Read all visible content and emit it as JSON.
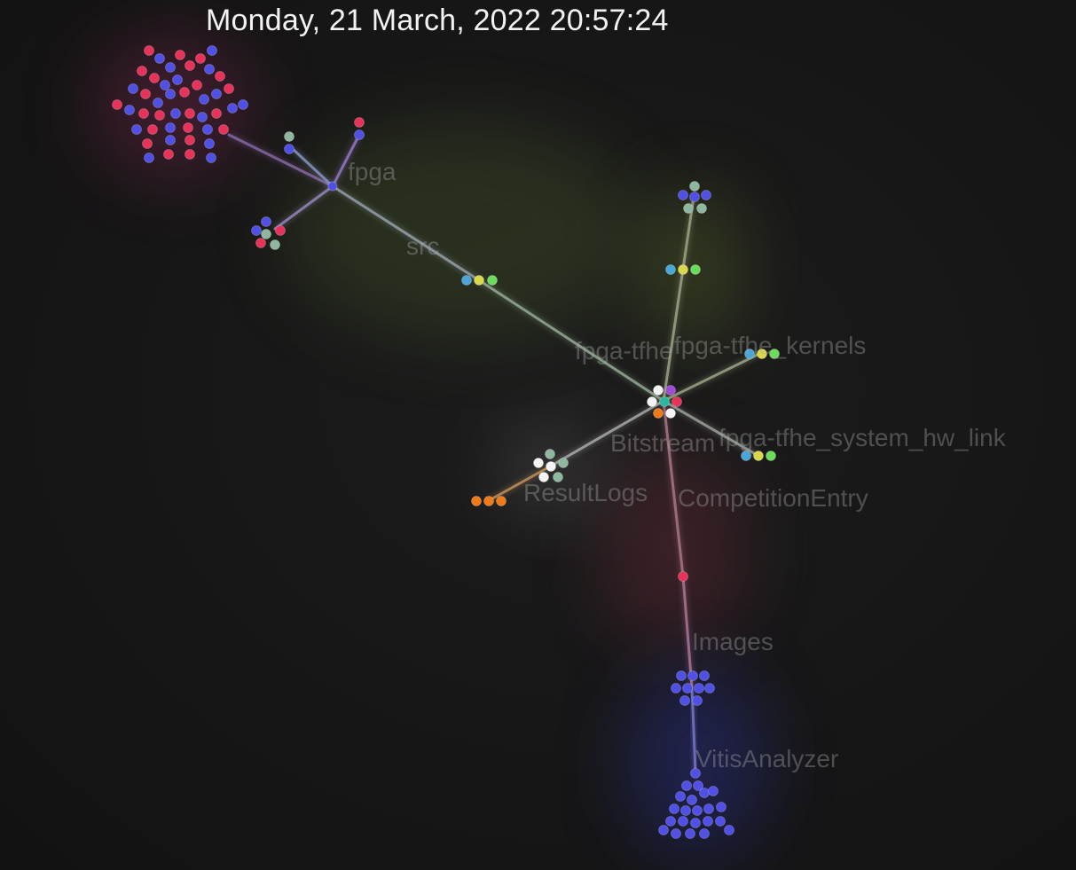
{
  "timestamp": "Monday, 21 March, 2022 20:57:24",
  "labels": [
    "fpga",
    "src",
    "fpga-tfhe",
    "fpga-tfhe_kernels",
    "Bitstream",
    "fpga-tfhe_system_hw_link",
    "ResultLogs",
    "CompetitionEntry",
    "Images",
    "VitisAnalyzer"
  ],
  "colors": {
    "background": "#161616",
    "file_red": "#e8325a",
    "file_blue": "#5050e6",
    "file_gray_green": "#8fb7a0",
    "file_yellow": "#d8d84a",
    "file_green": "#6adc5a",
    "file_cyan": "#4aa6d8",
    "file_orange": "#f07a1a",
    "file_white": "#f4f4f4",
    "file_purple": "#a04ad8",
    "file_teal": "#2ab8a0"
  }
}
